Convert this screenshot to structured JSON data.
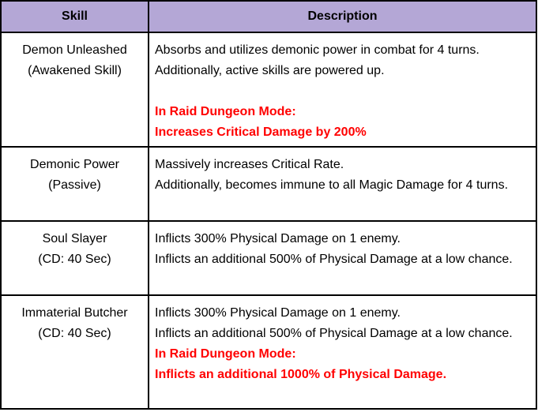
{
  "headers": {
    "skill": "Skill",
    "description": "Description"
  },
  "accent_color": "#b4a7d6",
  "highlight_color": "#ff0000",
  "rows": [
    {
      "name": "Demon Unleashed",
      "sub": "(Awakened Skill)",
      "lines": [
        "Absorbs and utilizes demonic power in combat for 4 turns.",
        "Additionally, active skills are powered up."
      ],
      "raid_title": "In Raid Dungeon Mode:",
      "raid_text": "Increases Critical Damage by 200%"
    },
    {
      "name": "Demonic Power",
      "sub": "(Passive)",
      "lines": [
        "Massively increases Critical Rate.",
        "Additionally, becomes immune to all Magic Damage for 4 turns."
      ]
    },
    {
      "name": "Soul Slayer",
      "sub": "(CD: 40 Sec)",
      "lines": [
        "Inflicts 300% Physical Damage on 1 enemy.",
        "Inflicts an additional 500% of Physical Damage at a low chance."
      ]
    },
    {
      "name": "Immaterial Butcher",
      "sub": "(CD: 40 Sec)",
      "lines": [
        "Inflicts 300% Physical Damage on 1 enemy.",
        "Inflicts an additional 500% of Physical Damage at a low chance."
      ],
      "raid_title": "In Raid Dungeon Mode:",
      "raid_text": "Inflicts an additional 1000% of Physical Damage."
    }
  ]
}
